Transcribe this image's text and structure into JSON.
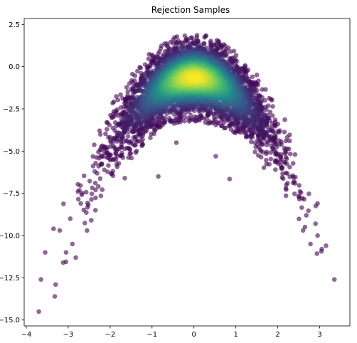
{
  "chart_data": {
    "type": "scatter",
    "title": "Rejection Samples",
    "xlabel": "",
    "ylabel": "",
    "xlim": [
      -4.05,
      3.72
    ],
    "ylim": [
      -15.35,
      2.85
    ],
    "x_ticks": [
      -4,
      -3,
      -2,
      -1,
      0,
      1,
      2,
      3
    ],
    "y_ticks": [
      2.5,
      0.0,
      -2.5,
      -5.0,
      -7.5,
      -10.0,
      -12.5,
      -15.0
    ],
    "x_tick_labels": [
      "−4",
      "−3",
      "−2",
      "−1",
      "0",
      "1",
      "2",
      "3"
    ],
    "y_tick_labels": [
      "2.5",
      "0.0",
      "−2.5",
      "−5.0",
      "−7.5",
      "−10.0",
      "−12.5",
      "−15.0"
    ],
    "colormap": [
      "#440154",
      "#3b528b",
      "#21918c",
      "#5ec962",
      "#fde725"
    ],
    "point_alpha": 0.6,
    "density_model": "points cluster along y = -x^2 + offset, offset in [-3.2, 1.9], densest near (0, -1.1)",
    "sample_count_estimate": 5000,
    "outliers": [
      {
        "x": -3.7,
        "y": -14.5
      },
      {
        "x": -3.32,
        "y": -13.6
      },
      {
        "x": -3.3,
        "y": -12.9
      },
      {
        "x": -3.65,
        "y": -12.6
      },
      {
        "x": -3.55,
        "y": -11.0
      },
      {
        "x": -3.12,
        "y": -11.6
      },
      {
        "x": -3.35,
        "y": -9.6
      },
      {
        "x": -2.95,
        "y": -9.0
      },
      {
        "x": -3.05,
        "y": -11.0
      },
      {
        "x": -2.7,
        "y": -8.1
      },
      {
        "x": -2.55,
        "y": -9.7
      },
      {
        "x": -2.9,
        "y": -10.5
      },
      {
        "x": -2.82,
        "y": -11.3
      },
      {
        "x": 3.35,
        "y": -12.6
      },
      {
        "x": 3.15,
        "y": -10.6
      },
      {
        "x": 3.05,
        "y": -10.8
      },
      {
        "x": 2.78,
        "y": -10.5
      },
      {
        "x": 2.95,
        "y": -10.0
      },
      {
        "x": 2.9,
        "y": -9.3
      },
      {
        "x": 2.65,
        "y": -9.5
      },
      {
        "x": 2.68,
        "y": -8.8
      },
      {
        "x": 2.95,
        "y": -8.1
      },
      {
        "x": 0.85,
        "y": -6.65
      },
      {
        "x": -0.85,
        "y": -6.5
      },
      {
        "x": -1.65,
        "y": -6.6
      },
      {
        "x": -0.42,
        "y": -4.5
      },
      {
        "x": 0.52,
        "y": -5.3
      },
      {
        "x": -2.35,
        "y": -8.5
      },
      {
        "x": -2.45,
        "y": -9.1
      }
    ]
  }
}
